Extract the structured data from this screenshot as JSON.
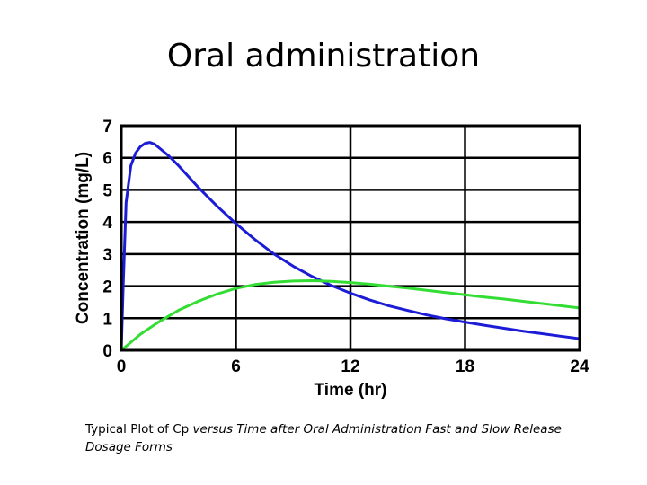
{
  "slide": {
    "title": "Oral administration",
    "caption_plain": "Typical Plot of Cp ",
    "caption_italic": "versus Time after Oral Administration Fast and Slow Release Dosage Forms"
  },
  "chart_data": {
    "type": "line",
    "xlabel": "Time (hr)",
    "ylabel": "Concentration (mg/L)",
    "xlim": [
      0,
      24
    ],
    "ylim": [
      0,
      7
    ],
    "xticks": [
      0,
      6,
      12,
      18,
      24
    ],
    "yticks": [
      0,
      1,
      2,
      3,
      4,
      5,
      6,
      7
    ],
    "grid": true,
    "series": [
      {
        "color": "#1c1cd6",
        "x": [
          0,
          0.1,
          0.25,
          0.5,
          0.75,
          1,
          1.25,
          1.5,
          1.75,
          2,
          2.5,
          3,
          4,
          5,
          6,
          7,
          8,
          9,
          10,
          11,
          12,
          13,
          14,
          15,
          16,
          17,
          18,
          19,
          20,
          21,
          22,
          23,
          24
        ],
        "y": [
          0,
          2.0,
          4.6,
          5.75,
          6.15,
          6.35,
          6.45,
          6.48,
          6.42,
          6.3,
          6.05,
          5.75,
          5.1,
          4.5,
          3.95,
          3.45,
          3.0,
          2.62,
          2.3,
          2.02,
          1.78,
          1.57,
          1.39,
          1.24,
          1.1,
          0.98,
          0.88,
          0.78,
          0.69,
          0.6,
          0.52,
          0.44,
          0.36
        ]
      },
      {
        "color": "#33dd33",
        "x": [
          0,
          0.5,
          1,
          2,
          3,
          4,
          5,
          6,
          7,
          8,
          9,
          10,
          11,
          12,
          13,
          14,
          15,
          16,
          17,
          18,
          19,
          20,
          21,
          22,
          23,
          24
        ],
        "y": [
          0,
          0.25,
          0.5,
          0.9,
          1.25,
          1.52,
          1.75,
          1.93,
          2.05,
          2.12,
          2.16,
          2.17,
          2.15,
          2.11,
          2.06,
          2.0,
          1.94,
          1.87,
          1.8,
          1.73,
          1.66,
          1.6,
          1.53,
          1.46,
          1.39,
          1.32
        ]
      }
    ]
  }
}
